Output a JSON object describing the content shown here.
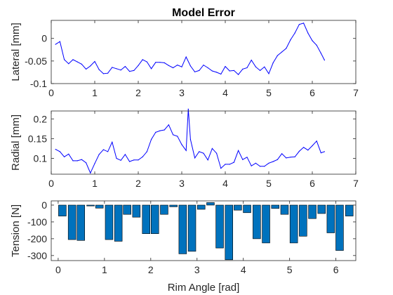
{
  "chart_data": [
    {
      "type": "line",
      "title": "Model Error",
      "xlabel": "",
      "ylabel": "Lateral [mm]",
      "xlim": [
        0,
        7
      ],
      "ylim": [
        -0.1,
        0.04
      ],
      "xticks": [
        "0",
        "1",
        "2",
        "3",
        "4",
        "5",
        "6",
        "7"
      ],
      "yticks": [
        "0",
        "-0.05",
        "-0.1"
      ],
      "color": "#0000ff",
      "series": [
        {
          "x": [
            0.1,
            0.2,
            0.3,
            0.4,
            0.5,
            0.6,
            0.7,
            0.8,
            0.9,
            1.0,
            1.1,
            1.2,
            1.3,
            1.4,
            1.5,
            1.6,
            1.7,
            1.8,
            1.9,
            2.0,
            2.1,
            2.2,
            2.3,
            2.4,
            2.5,
            2.6,
            2.7,
            2.8,
            2.9,
            3.0,
            3.1,
            3.2,
            3.3,
            3.4,
            3.5,
            3.6,
            3.7,
            3.8,
            3.9,
            4.0,
            4.1,
            4.2,
            4.3,
            4.4,
            4.5,
            4.6,
            4.7,
            4.8,
            4.9,
            5.0,
            5.1,
            5.2,
            5.3,
            5.4,
            5.5,
            5.6,
            5.7,
            5.8,
            5.9,
            6.0,
            6.1,
            6.2,
            6.28
          ],
          "y": [
            -0.013,
            -0.007,
            -0.047,
            -0.056,
            -0.047,
            -0.052,
            -0.057,
            -0.068,
            -0.061,
            -0.051,
            -0.069,
            -0.078,
            -0.077,
            -0.064,
            -0.067,
            -0.07,
            -0.062,
            -0.073,
            -0.071,
            -0.06,
            -0.047,
            -0.052,
            -0.067,
            -0.053,
            -0.053,
            -0.054,
            -0.06,
            -0.065,
            -0.059,
            -0.063,
            -0.041,
            -0.061,
            -0.074,
            -0.071,
            -0.059,
            -0.065,
            -0.072,
            -0.075,
            -0.079,
            -0.062,
            -0.072,
            -0.071,
            -0.08,
            -0.068,
            -0.065,
            -0.048,
            -0.063,
            -0.071,
            -0.063,
            -0.078,
            -0.054,
            -0.038,
            -0.03,
            -0.022,
            -0.003,
            0.012,
            0.031,
            0.034,
            0.012,
            -0.005,
            -0.015,
            -0.033,
            -0.048
          ]
        }
      ]
    },
    {
      "type": "line",
      "title": "",
      "xlabel": "",
      "ylabel": "Radial [mm]",
      "xlim": [
        0,
        7
      ],
      "ylim": [
        0.06,
        0.22
      ],
      "xticks": [
        "0",
        "1",
        "2",
        "3",
        "4",
        "5",
        "6",
        "7"
      ],
      "yticks": [
        "0.2",
        "0.15",
        "0.1"
      ],
      "color": "#0000ff",
      "series": [
        {
          "x": [
            0.1,
            0.2,
            0.3,
            0.4,
            0.5,
            0.6,
            0.7,
            0.8,
            0.9,
            1.0,
            1.1,
            1.2,
            1.3,
            1.4,
            1.5,
            1.6,
            1.7,
            1.8,
            1.9,
            2.0,
            2.1,
            2.2,
            2.3,
            2.4,
            2.5,
            2.6,
            2.7,
            2.8,
            2.9,
            3.0,
            3.1,
            3.15,
            3.2,
            3.3,
            3.4,
            3.5,
            3.6,
            3.7,
            3.8,
            3.9,
            4.0,
            4.1,
            4.2,
            4.3,
            4.4,
            4.5,
            4.6,
            4.7,
            4.8,
            4.9,
            5.0,
            5.1,
            5.2,
            5.3,
            5.4,
            5.5,
            5.6,
            5.7,
            5.8,
            5.9,
            6.0,
            6.1,
            6.2,
            6.28
          ],
          "y": [
            0.123,
            0.117,
            0.104,
            0.111,
            0.094,
            0.094,
            0.097,
            0.089,
            0.063,
            0.087,
            0.11,
            0.122,
            0.117,
            0.141,
            0.1,
            0.095,
            0.11,
            0.092,
            0.096,
            0.096,
            0.104,
            0.117,
            0.148,
            0.166,
            0.17,
            0.172,
            0.185,
            0.16,
            0.156,
            0.135,
            0.12,
            0.225,
            0.148,
            0.101,
            0.117,
            0.113,
            0.096,
            0.125,
            0.113,
            0.075,
            0.085,
            0.085,
            0.09,
            0.12,
            0.097,
            0.103,
            0.081,
            0.088,
            0.08,
            0.08,
            0.088,
            0.092,
            0.097,
            0.112,
            0.101,
            0.103,
            0.104,
            0.118,
            0.128,
            0.121,
            0.132,
            0.144,
            0.114,
            0.117
          ]
        }
      ]
    },
    {
      "type": "bar",
      "title": "",
      "xlabel": "Rim Angle [rad]",
      "ylabel": "Tension [N]",
      "xlim": [
        -0.15,
        6.43
      ],
      "ylim": [
        -330,
        25
      ],
      "xticks": [
        "0",
        "1",
        "2",
        "3",
        "4",
        "5",
        "6"
      ],
      "yticks": [
        "0",
        "-100",
        "-200",
        "-300"
      ],
      "bar_color": "#0072bd",
      "x": [
        0.09,
        0.3,
        0.49,
        0.7,
        0.89,
        1.1,
        1.3,
        1.49,
        1.69,
        1.9,
        2.09,
        2.29,
        2.49,
        2.69,
        2.89,
        3.09,
        3.29,
        3.49,
        3.69,
        3.88,
        4.08,
        4.29,
        4.49,
        4.69,
        4.89,
        5.09,
        5.29,
        5.49,
        5.69,
        5.89,
        6.08,
        6.29
      ],
      "values": [
        -65,
        -205,
        -210,
        -5,
        -18,
        -205,
        -215,
        -55,
        -72,
        -170,
        -170,
        -55,
        -10,
        -290,
        -275,
        -25,
        15,
        -255,
        -325,
        -30,
        -45,
        -200,
        -225,
        -20,
        -55,
        -225,
        -185,
        -80,
        -50,
        -165,
        -270,
        -65
      ]
    }
  ]
}
